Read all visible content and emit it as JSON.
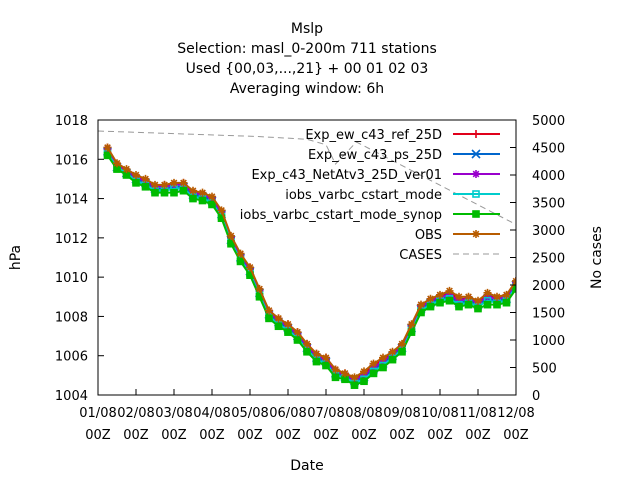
{
  "chart_data": {
    "type": "line",
    "title_lines": [
      "Mslp",
      "Selection: masl_0-200m    711 stations",
      "Used {00,03,...,21} + 00 01 02 03",
      "Averaging window:  6h"
    ],
    "xlabel": "Date",
    "ylabel": "hPa",
    "y2label": "No cases",
    "x_ticks": [
      {
        "day": 0,
        "date": "01/08",
        "hour": "00Z"
      },
      {
        "day": 1,
        "date": "02/08",
        "hour": "00Z"
      },
      {
        "day": 2,
        "date": "03/08",
        "hour": "00Z"
      },
      {
        "day": 3,
        "date": "04/08",
        "hour": "00Z"
      },
      {
        "day": 4,
        "date": "05/08",
        "hour": "00Z"
      },
      {
        "day": 5,
        "date": "06/08",
        "hour": "00Z"
      },
      {
        "day": 6,
        "date": "07/08",
        "hour": "00Z"
      },
      {
        "day": 7,
        "date": "08/08",
        "hour": "00Z"
      },
      {
        "day": 8,
        "date": "09/08",
        "hour": "00Z"
      },
      {
        "day": 9,
        "date": "10/08",
        "hour": "00Z"
      },
      {
        "day": 10,
        "date": "11/08",
        "hour": "00Z"
      },
      {
        "day": 11,
        "date": "12/08",
        "hour": "00Z"
      }
    ],
    "xlim": [
      0,
      11
    ],
    "ylim": [
      1004,
      1018
    ],
    "yticks": [
      1004,
      1006,
      1008,
      1010,
      1012,
      1014,
      1016,
      1018
    ],
    "y2lim": [
      0,
      5000
    ],
    "y2ticks": [
      0,
      500,
      1000,
      1500,
      2000,
      2500,
      3000,
      3500,
      4000,
      4500,
      5000
    ],
    "grid": false,
    "legend_position": "top-right",
    "x": [
      0.25,
      0.5,
      0.75,
      1.0,
      1.25,
      1.5,
      1.75,
      2.0,
      2.25,
      2.5,
      2.75,
      3.0,
      3.25,
      3.5,
      3.75,
      4.0,
      4.25,
      4.5,
      4.75,
      5.0,
      5.25,
      5.5,
      5.75,
      6.0,
      6.25,
      6.5,
      6.75,
      7.0,
      7.25,
      7.5,
      7.75,
      8.0,
      8.25,
      8.5,
      8.75,
      9.0,
      9.25,
      9.5,
      9.75,
      10.0,
      10.25,
      10.5,
      10.75,
      11.0
    ],
    "series": [
      {
        "name": "Exp_ew_c43_ref_25D",
        "color": "#e0001a",
        "marker": "plus",
        "values": [
          1016.6,
          1015.7,
          1015.4,
          1015.1,
          1014.9,
          1014.6,
          1014.7,
          1014.7,
          1014.8,
          1014.3,
          1014.2,
          1014.0,
          1013.3,
          1012.0,
          1011.1,
          1010.5,
          1009.3,
          1008.3,
          1007.9,
          1007.6,
          1007.2,
          1006.6,
          1006.1,
          1005.9,
          1005.3,
          1005.1,
          1004.8,
          1005.1,
          1005.5,
          1005.8,
          1006.1,
          1006.5,
          1007.5,
          1008.5,
          1008.8,
          1009.0,
          1009.2,
          1008.9,
          1008.9,
          1008.7,
          1009.1,
          1008.9,
          1009.0,
          1009.8
        ]
      },
      {
        "name": "Exp_ew_c43_ps_25D",
        "color": "#0066cc",
        "marker": "cross",
        "values": [
          1016.4,
          1015.6,
          1015.3,
          1015.0,
          1014.8,
          1014.5,
          1014.5,
          1014.6,
          1014.6,
          1014.2,
          1014.1,
          1013.9,
          1013.2,
          1011.9,
          1011.0,
          1010.3,
          1009.2,
          1008.1,
          1007.7,
          1007.4,
          1007.0,
          1006.4,
          1005.9,
          1005.7,
          1005.1,
          1004.9,
          1004.7,
          1004.9,
          1005.3,
          1005.6,
          1006.0,
          1006.4,
          1007.4,
          1008.4,
          1008.7,
          1008.9,
          1009.0,
          1008.7,
          1008.8,
          1008.6,
          1008.9,
          1008.8,
          1008.9,
          1009.6
        ]
      },
      {
        "name": "Exp_c43_NetAtv3_25D_ver01",
        "color": "#9900cc",
        "marker": "star",
        "values": [
          1016.5,
          1015.7,
          1015.4,
          1015.1,
          1014.9,
          1014.6,
          1014.6,
          1014.7,
          1014.7,
          1014.3,
          1014.2,
          1014.0,
          1013.3,
          1012.0,
          1011.1,
          1010.4,
          1009.3,
          1008.2,
          1007.8,
          1007.5,
          1007.1,
          1006.5,
          1006.0,
          1005.8,
          1005.2,
          1005.0,
          1004.8,
          1005.0,
          1005.4,
          1005.7,
          1006.1,
          1006.5,
          1007.5,
          1008.5,
          1008.8,
          1009.0,
          1009.1,
          1008.8,
          1008.9,
          1008.7,
          1009.0,
          1008.9,
          1009.0,
          1009.7
        ]
      },
      {
        "name": "iobs_varbc_cstart_mode",
        "color": "#00cccc",
        "marker": "box",
        "values": [
          1016.3,
          1015.6,
          1015.3,
          1014.9,
          1014.7,
          1014.4,
          1014.4,
          1014.5,
          1014.5,
          1014.1,
          1014.0,
          1013.8,
          1013.1,
          1011.8,
          1010.9,
          1010.2,
          1009.1,
          1008.0,
          1007.6,
          1007.3,
          1006.9,
          1006.3,
          1005.8,
          1005.6,
          1005.0,
          1004.9,
          1004.6,
          1004.8,
          1005.2,
          1005.5,
          1005.9,
          1006.3,
          1007.3,
          1008.3,
          1008.6,
          1008.8,
          1008.9,
          1008.6,
          1008.7,
          1008.5,
          1008.8,
          1008.7,
          1008.8,
          1009.5
        ]
      },
      {
        "name": "iobs_varbc_cstart_mode_synop",
        "color": "#00bb00",
        "marker": "filledbox",
        "values": [
          1016.2,
          1015.5,
          1015.2,
          1014.8,
          1014.6,
          1014.3,
          1014.3,
          1014.3,
          1014.4,
          1014.0,
          1013.9,
          1013.7,
          1013.0,
          1011.7,
          1010.8,
          1010.1,
          1009.0,
          1007.9,
          1007.5,
          1007.2,
          1006.8,
          1006.2,
          1005.7,
          1005.5,
          1004.9,
          1004.8,
          1004.5,
          1004.7,
          1005.1,
          1005.4,
          1005.8,
          1006.2,
          1007.2,
          1008.2,
          1008.5,
          1008.7,
          1008.8,
          1008.5,
          1008.6,
          1008.4,
          1008.6,
          1008.6,
          1008.7,
          1009.4
        ]
      },
      {
        "name": "OBS",
        "color": "#b85c00",
        "marker": "star",
        "values": [
          1016.6,
          1015.8,
          1015.5,
          1015.2,
          1015.0,
          1014.7,
          1014.7,
          1014.8,
          1014.8,
          1014.4,
          1014.3,
          1014.1,
          1013.4,
          1012.1,
          1011.2,
          1010.5,
          1009.4,
          1008.3,
          1007.9,
          1007.6,
          1007.2,
          1006.6,
          1006.1,
          1005.9,
          1005.3,
          1005.1,
          1004.9,
          1005.2,
          1005.6,
          1005.9,
          1006.2,
          1006.6,
          1007.6,
          1008.6,
          1008.9,
          1009.1,
          1009.3,
          1009.0,
          1009.0,
          1008.8,
          1009.2,
          1009.0,
          1009.1,
          1009.8
        ]
      },
      {
        "name": "CASES",
        "color": "#999999",
        "marker": "none",
        "axis": "y2",
        "dashed": true,
        "x": [
          0.0,
          4.2,
          5.5,
          6.0,
          6.25,
          6.8,
          11.0
        ],
        "values": [
          4800,
          4700,
          4650,
          4550,
          4200,
          4600,
          3100
        ]
      }
    ]
  }
}
